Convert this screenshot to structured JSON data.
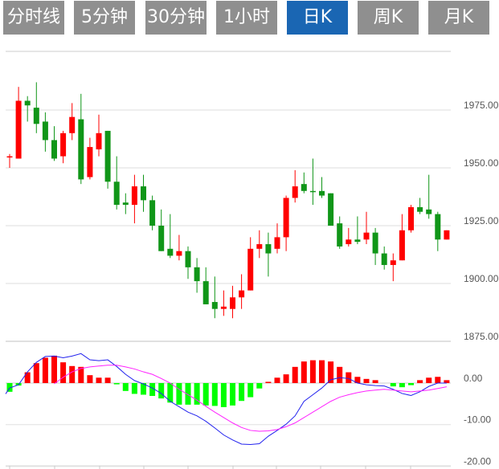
{
  "tabs": [
    {
      "label": "分时线",
      "active": false
    },
    {
      "label": "5分钟",
      "active": false
    },
    {
      "label": "30分钟",
      "active": false
    },
    {
      "label": "1小时",
      "active": false
    },
    {
      "label": "日K",
      "active": true
    },
    {
      "label": "周K",
      "active": false
    },
    {
      "label": "月K",
      "active": false
    }
  ],
  "colors": {
    "up": "#ff0000",
    "down": "#109618",
    "hist_up": "#ff0000",
    "hist_down": "#00ff00",
    "dif": "#2222ee",
    "dea": "#ff22ff",
    "tab": "#8f8f8f",
    "tab_active": "#1a66b3"
  },
  "chart_data": [
    {
      "type": "candlestick",
      "title": "日K",
      "ylim": [
        1875,
        2000
      ],
      "y_ticks": [
        1975,
        1950,
        1925,
        1900,
        1875
      ],
      "y_tick_labels": [
        "1975.00",
        "1950.00",
        "1925.00",
        "1900.00",
        "1875.00"
      ],
      "grid": true,
      "ohlc": [
        [
          1955,
          1956,
          1950,
          1955
        ],
        [
          1954,
          1985,
          1954,
          1979
        ],
        [
          1979,
          1981,
          1970,
          1977
        ],
        [
          1976,
          1987,
          1965,
          1969
        ],
        [
          1970,
          1974,
          1957,
          1962
        ],
        [
          1962,
          1968,
          1953,
          1954
        ],
        [
          1955,
          1966,
          1952,
          1965
        ],
        [
          1965,
          1978,
          1962,
          1972
        ],
        [
          1971,
          1982,
          1943,
          1945
        ],
        [
          1946,
          1963,
          1945,
          1959
        ],
        [
          1958,
          1973,
          1955,
          1965
        ],
        [
          1966,
          1966,
          1941,
          1944
        ],
        [
          1944,
          1955,
          1932,
          1934
        ],
        [
          1935,
          1939,
          1930,
          1934
        ],
        [
          1934,
          1947,
          1926,
          1942
        ],
        [
          1942,
          1947,
          1931,
          1936
        ],
        [
          1936,
          1938,
          1923,
          1925
        ],
        [
          1925,
          1932,
          1914,
          1914
        ],
        [
          1915,
          1930,
          1911,
          1912
        ],
        [
          1912,
          1921,
          1910,
          1914
        ],
        [
          1914,
          1916,
          1902,
          1907
        ],
        [
          1907,
          1911,
          1896,
          1901
        ],
        [
          1901,
          1907,
          1891,
          1891
        ],
        [
          1892,
          1903,
          1885,
          1889
        ],
        [
          1889,
          1897,
          1886,
          1890
        ],
        [
          1889,
          1899,
          1885,
          1894
        ],
        [
          1894,
          1904,
          1889,
          1897
        ],
        [
          1897,
          1920,
          1897,
          1915
        ],
        [
          1915,
          1923,
          1911,
          1917
        ],
        [
          1917,
          1922,
          1903,
          1913
        ],
        [
          1915,
          1926,
          1913,
          1920
        ],
        [
          1920,
          1938,
          1914,
          1937
        ],
        [
          1937,
          1949,
          1935,
          1942
        ],
        [
          1943,
          1948,
          1939,
          1940
        ],
        [
          1940,
          1954,
          1934,
          1939.5
        ],
        [
          1940,
          1946,
          1937,
          1938
        ],
        [
          1939,
          1939,
          1925,
          1925
        ],
        [
          1926,
          1929,
          1915,
          1916
        ],
        [
          1917,
          1924,
          1916,
          1919
        ],
        [
          1919,
          1929,
          1917,
          1918
        ],
        [
          1919,
          1931,
          1917,
          1922
        ],
        [
          1922,
          1924,
          1908,
          1913
        ],
        [
          1913,
          1916,
          1906,
          1908
        ],
        [
          1908,
          1913,
          1901,
          1910
        ],
        [
          1910,
          1930,
          1910,
          1923
        ],
        [
          1923,
          1934,
          1922,
          1933
        ],
        [
          1933,
          1937,
          1930,
          1931
        ],
        [
          1932,
          1947,
          1928,
          1930
        ],
        [
          1930,
          1931,
          1914,
          1919
        ],
        [
          1919,
          1923,
          1919,
          1923
        ]
      ]
    },
    {
      "type": "macd",
      "ylim": [
        -20,
        10
      ],
      "y_ticks": [
        0,
        -10,
        -20
      ],
      "y_tick_labels": [
        "0.00",
        "-10.00",
        "-20.00"
      ],
      "grid": true,
      "histogram": [
        -2.1,
        -0.6,
        2.6,
        4.8,
        6.1,
        6.6,
        5.0,
        4.1,
        3.9,
        1.9,
        1.3,
        1.3,
        -0.3,
        -1.9,
        -2.6,
        -2.8,
        -3.1,
        -3.7,
        -4.7,
        -5.2,
        -5.2,
        -5.2,
        -5.4,
        -5.5,
        -5.8,
        -5.4,
        -4.3,
        -3.4,
        -1.3,
        0.3,
        1.3,
        2.1,
        3.9,
        5.2,
        5.5,
        5.5,
        5.2,
        3.9,
        2.6,
        1.5,
        1.0,
        0.7,
        0,
        -0.8,
        -1.0,
        -0.5,
        0.7,
        1.3,
        1.5,
        0.7
      ],
      "dif": [
        -1.2,
        -0.4,
        2.7,
        5.0,
        6.4,
        6.5,
        6.1,
        6.5,
        7.1,
        5.6,
        5.4,
        5.6,
        4.0,
        2.1,
        0.6,
        -0.2,
        -1.2,
        -2.5,
        -4.4,
        -5.7,
        -7.0,
        -7.9,
        -9.2,
        -10.8,
        -12.5,
        -13.7,
        -14.7,
        -14.8,
        -14.6,
        -12.8,
        -11.4,
        -9.9,
        -7.9,
        -4.4,
        -2.8,
        -1.2,
        0.8,
        1.3,
        1.1,
        0,
        -0.4,
        -0.6,
        -0.7,
        -1.5,
        -2.5,
        -3.0,
        -2.1,
        -0.8,
        0,
        0.0
      ],
      "dea": [
        null,
        null,
        null,
        null,
        null,
        -0.2,
        1.4,
        2.7,
        3.5,
        3.9,
        4.1,
        4.3,
        4.3,
        3.9,
        3.4,
        2.7,
        2.1,
        1.1,
        0,
        -1.5,
        -2.8,
        -4.1,
        -5.6,
        -7.0,
        -8.3,
        -9.6,
        -10.7,
        -11.4,
        -11.6,
        -11.5,
        -11.2,
        -10.5,
        -9.6,
        -8.3,
        -7.0,
        -5.7,
        -4.4,
        -3.4,
        -2.8,
        -2.3,
        -1.9,
        -1.7,
        -1.5,
        -1.7,
        -1.9,
        -2.1,
        -1.9,
        -1.7,
        -1.3,
        -0.9
      ]
    }
  ]
}
